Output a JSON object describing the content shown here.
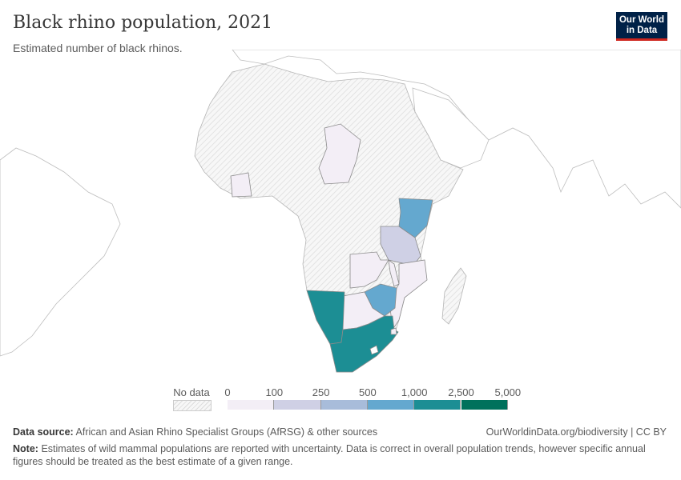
{
  "header": {
    "title": "Black rhino population, 2021",
    "subtitle": "Estimated number of black rhinos.",
    "logo": "Our World in Data"
  },
  "legend": {
    "no_data_label": "No data",
    "ticks": [
      "0",
      "100",
      "250",
      "500",
      "1,000",
      "2,500",
      "5,000"
    ],
    "bins": [
      {
        "range": "0–100",
        "color": "#f3eef6"
      },
      {
        "range": "100–250",
        "color": "#cfd0e5"
      },
      {
        "range": "250–500",
        "color": "#a8bcda"
      },
      {
        "range": "500–1,000",
        "color": "#64a8cf"
      },
      {
        "range": "1,000–2,500",
        "color": "#1c8e94"
      },
      {
        "range": "2,500–5,000",
        "color": "#00715c"
      }
    ]
  },
  "map_regions": [
    {
      "country": "Kenya",
      "bin": "500–1,000"
    },
    {
      "country": "Tanzania",
      "bin": "100–250"
    },
    {
      "country": "Zambia",
      "bin": "0–100"
    },
    {
      "country": "Malawi",
      "bin": "0–100"
    },
    {
      "country": "Mozambique",
      "bin": "0–100"
    },
    {
      "country": "Zimbabwe",
      "bin": "500–1,000"
    },
    {
      "country": "Botswana",
      "bin": "0–100"
    },
    {
      "country": "Namibia",
      "bin": "1,000–2,500"
    },
    {
      "country": "South Africa",
      "bin": "1,000–2,500"
    },
    {
      "country": "Eswatini",
      "bin": "0–100"
    },
    {
      "country": "Chad",
      "bin": "0–100"
    },
    {
      "country": "Cote d'Ivoire",
      "bin": "0–100"
    }
  ],
  "footer": {
    "source_label": "Data source:",
    "source_text": "African and Asian Rhino Specialist Groups (AfRSG) & other sources",
    "url": "OurWorldinData.org/biodiversity | CC BY",
    "note_label": "Note:",
    "note_text": "Estimates of wild mammal populations are reported with uncertainty. Data is correct in overall population trends, however specific annual figures should be treated as the best estimate of a given range."
  }
}
